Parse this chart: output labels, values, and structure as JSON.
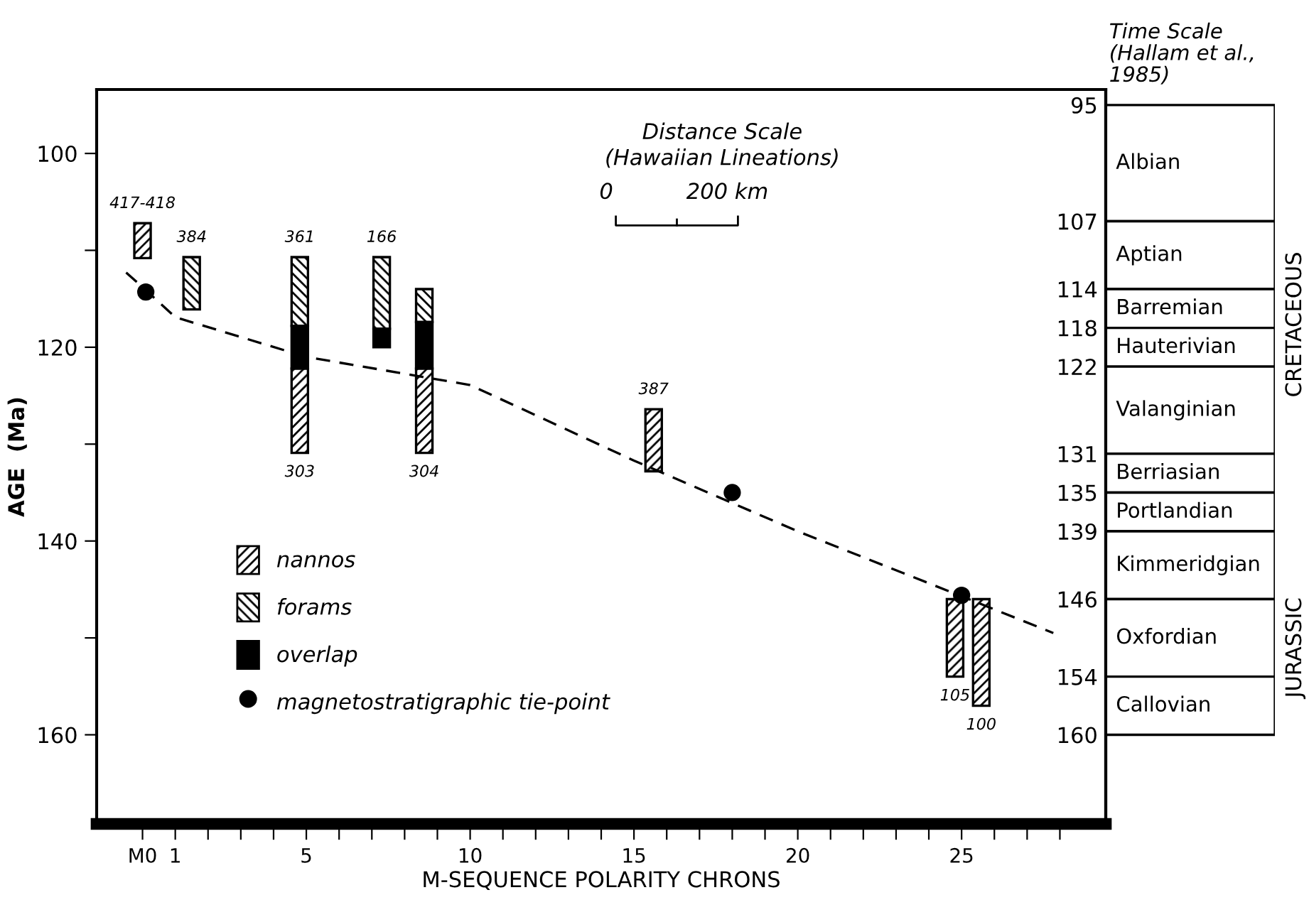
{
  "chart_data": [
    {
      "type": "bar",
      "xlabel": "M-SEQUENCE POLARITY CHRONS",
      "ylabel": "AGE  (Ma)",
      "xlim": [
        -1.4,
        29.4
      ],
      "ylim": [
        169.2,
        93.4
      ],
      "xticks": [
        {
          "value": 0,
          "label": "M0"
        },
        1,
        5,
        10,
        15,
        20,
        25,
        {
          "value": 2,
          "label": null
        },
        {
          "value": 3,
          "label": null
        },
        {
          "value": 4,
          "label": null
        },
        {
          "value": 6,
          "label": null
        },
        {
          "value": 7,
          "label": null
        },
        {
          "value": 8,
          "label": null
        },
        {
          "value": 9,
          "label": null
        },
        {
          "value": 11,
          "label": null
        },
        {
          "value": 12,
          "label": null
        },
        {
          "value": 13,
          "label": null
        },
        {
          "value": 14,
          "label": null
        },
        {
          "value": 16,
          "label": null
        },
        {
          "value": 17,
          "label": null
        },
        {
          "value": 18,
          "label": null
        },
        {
          "value": 19,
          "label": null
        },
        {
          "value": 21,
          "label": null
        },
        {
          "value": 22,
          "label": null
        },
        {
          "value": 23,
          "label": null
        },
        {
          "value": 24,
          "label": null
        },
        {
          "value": 26,
          "label": null
        },
        {
          "value": 27,
          "label": null
        },
        {
          "value": 28,
          "label": null
        }
      ],
      "yticks": [
        100,
        120,
        140,
        160,
        {
          "value": 110,
          "label": null
        },
        {
          "value": 130,
          "label": null
        },
        {
          "value": 150,
          "label": null
        }
      ],
      "grid": false,
      "legend": "bottom left",
      "series": [
        {
          "name": "nannos",
          "type": "bar",
          "color": "#000000",
          "x": [
            0,
            4.8,
            8.6,
            15.6,
            24.8,
            25.6
          ],
          "base": [
            107.2,
            122.2,
            122.2,
            126.4,
            146,
            146
          ],
          "values": [
            3.6,
            8.7,
            8.7,
            6.4,
            8,
            11
          ]
        },
        {
          "name": "forams",
          "type": "bar",
          "color": "#000000",
          "x": [
            1.5,
            4.8,
            7.3,
            8.6
          ],
          "base": [
            110.7,
            110.7,
            110.7,
            114.0
          ],
          "values": [
            5.4,
            7.1,
            7.4,
            3.4
          ]
        },
        {
          "name": "overlap",
          "type": "bar",
          "color": "#000000",
          "x": [
            4.8,
            7.3,
            8.6
          ],
          "base": [
            117.8,
            118.1,
            117.4
          ],
          "values": [
            4.4,
            1.9,
            4.8
          ]
        },
        {
          "name": "magnetostratigraphic tie-point",
          "type": "scatter",
          "marker": "circle",
          "color": "#000000",
          "x": [
            0.1,
            18.0,
            25.0
          ],
          "values": [
            114.3,
            135,
            145.6
          ]
        },
        {
          "type": "line",
          "line_style": "dashed",
          "marker": "none",
          "color": "#000000",
          "x": [
            -0.5,
            0,
            1,
            5,
            10,
            15,
            20,
            25,
            27.8
          ],
          "values": [
            112.3,
            113.8,
            116.9,
            121.0,
            123.9,
            131.7,
            139.0,
            145.7,
            149.5
          ]
        }
      ],
      "annotations": [
        {
          "text": "417-418",
          "x": 0,
          "y": 107.2
        },
        {
          "text": "384",
          "x": 1.5,
          "y": 110.7
        },
        {
          "text": "361",
          "x": 4.8,
          "y": 110.7
        },
        {
          "text": "166",
          "x": 7.3,
          "y": 110.7
        },
        {
          "text": "303",
          "x": 4.8,
          "y": 130.9
        },
        {
          "text": "304",
          "x": 8.6,
          "y": 130.9
        },
        {
          "text": "387",
          "x": 15.6,
          "y": 126.4
        },
        {
          "text": "105",
          "x": 24.8,
          "y": 154
        },
        {
          "text": "100",
          "x": 25.6,
          "y": 157
        },
        "Distance Scale\n(Hawaiian Lineations)",
        "0",
        "200 km"
      ]
    },
    {
      "type": "bar",
      "title": "Time Scale\n(Hallam et al.,\n1985)",
      "categories": [
        null
      ],
      "ylim": [
        169.2,
        93.4
      ],
      "yticks": [
        95,
        107,
        114,
        118,
        122,
        131,
        135,
        139,
        146,
        154,
        160
      ],
      "legend": false,
      "series": [
        {
          "name": "Albian",
          "color": "#ffffff",
          "base": [
            95
          ],
          "values": [
            12
          ]
        },
        {
          "name": "Aptian",
          "color": "#ffffff",
          "base": [
            107
          ],
          "values": [
            7
          ]
        },
        {
          "name": "Barremian",
          "color": "#ffffff",
          "base": [
            114
          ],
          "values": [
            4
          ]
        },
        {
          "name": "Hauterivian",
          "color": "#ffffff",
          "base": [
            118
          ],
          "values": [
            4
          ]
        },
        {
          "name": "Valanginian",
          "color": "#ffffff",
          "base": [
            122
          ],
          "values": [
            9
          ]
        },
        {
          "name": "Berriasian",
          "color": "#ffffff",
          "base": [
            131
          ],
          "values": [
            4
          ]
        },
        {
          "name": "Portlandian",
          "color": "#ffffff",
          "base": [
            135
          ],
          "values": [
            4
          ]
        },
        {
          "name": "Kimmeridgian",
          "color": "#ffffff",
          "base": [
            139
          ],
          "values": [
            7
          ]
        },
        {
          "name": "Oxfordian",
          "color": "#ffffff",
          "base": [
            146
          ],
          "values": [
            8
          ]
        },
        {
          "name": "Callovian",
          "color": "#ffffff",
          "base": [
            154
          ],
          "values": [
            6
          ]
        }
      ],
      "annotations": [
        "CRETACEOUS",
        "JURASSIC"
      ]
    }
  ]
}
